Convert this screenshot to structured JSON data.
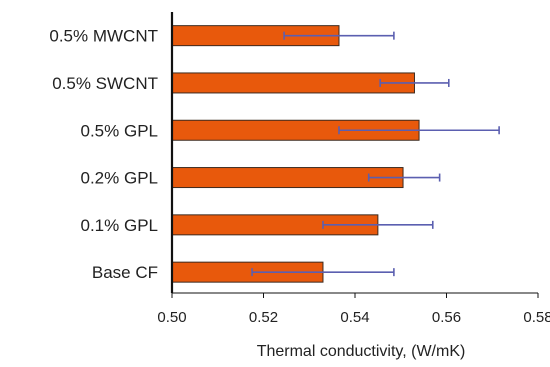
{
  "chart_data": {
    "type": "bar",
    "orientation": "horizontal",
    "categories": [
      "0.5% MWCNT",
      "0.5% SWCNT",
      "0.5% GPL",
      "0.2% GPL",
      "0.1% GPL",
      "Base CF"
    ],
    "values": [
      0.5365,
      0.553,
      0.554,
      0.5505,
      0.545,
      0.533
    ],
    "error_low": [
      0.5245,
      0.5455,
      0.5365,
      0.543,
      0.533,
      0.5175
    ],
    "error_high": [
      0.5485,
      0.5605,
      0.5715,
      0.5585,
      0.557,
      0.5485
    ],
    "xlabel": "Thermal conductivity, (W/mK)",
    "ylabel": "",
    "xlim": [
      0.5,
      0.58
    ],
    "xticks": [
      "0.50",
      "0.52",
      "0.54",
      "0.56",
      "0.58"
    ],
    "grid": false,
    "colors": {
      "bar_fill": "#e8590c",
      "bar_stroke": "#3d2a1e",
      "error_bar": "#5b5fb0",
      "axis": "#111111"
    }
  }
}
